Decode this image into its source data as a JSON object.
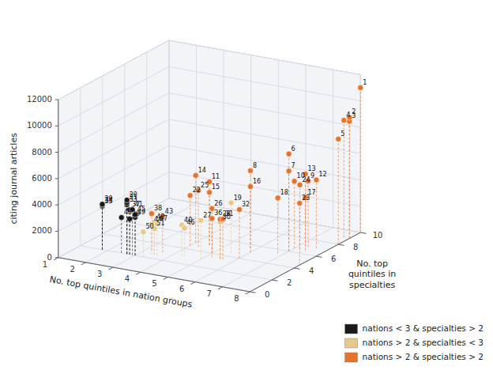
{
  "chart_data": {
    "type": "scatter3d",
    "xlabel": "No. top quintiles in nation groups",
    "ylabel": "citing journal articles",
    "zlabel": "No. top\nquintiles in\nspecialties",
    "xlim": [
      1,
      8
    ],
    "xticks": [
      1,
      2,
      3,
      4,
      5,
      6,
      7,
      8
    ],
    "ylim": [
      0,
      12000
    ],
    "yticks": [
      0,
      2000,
      4000,
      6000,
      8000,
      10000,
      12000
    ],
    "zlim": [
      0,
      10
    ],
    "zticks": [
      0,
      2,
      4,
      6,
      8,
      10
    ],
    "grid": true,
    "legend": "lower right",
    "series": [
      {
        "name": "nations < 3 & specialties > 2",
        "color": "#1A1A1A",
        "x": [
          2.7,
          2.7,
          1.8,
          2.7,
          1.8,
          1.8,
          2.8,
          2.8,
          2.9,
          3.0,
          2.5,
          3.0
        ],
        "y": [
          4100,
          3900,
          3450,
          3750,
          3350,
          3300,
          3400,
          2700,
          3450,
          3100,
          2700,
          2900
        ],
        "z": [
          2.0,
          2.0,
          2.0,
          2.0,
          2.0,
          2.0,
          2.0,
          2.0,
          2.0,
          2.0,
          2.0,
          2.0
        ],
        "labels": [
          20,
          21,
          29,
          33,
          34,
          35,
          37,
          39,
          41,
          45,
          48,
          49
        ]
      },
      {
        "name": "nations > 2 & specialties < 3",
        "color": "#E8C88A",
        "x": [
          5.5,
          5.0,
          5.5,
          4.3,
          3.5,
          3.4,
          4.4,
          3.6,
          3.3,
          3.5
        ],
        "y": [
          3800,
          2950,
          2800,
          2350,
          2500,
          2300,
          2150,
          2400,
          1900,
          2000
        ],
        "z": [
          4.5,
          3.0,
          3.5,
          3.0,
          2.5,
          2.5,
          3.0,
          2.5,
          2.0,
          2.5
        ],
        "labels": [
          19,
          27,
          30,
          40,
          42,
          44,
          46,
          47,
          50,
          51
        ]
      },
      {
        "name": "nations > 2 & specialties > 2",
        "color": "#E8722A",
        "x": [
          8.0,
          8.0,
          8.0,
          7.8,
          8.0,
          7.0,
          7.0,
          6.0,
          7.3,
          7.0,
          4.5,
          7.6,
          7.2,
          4.0,
          4.5,
          5.8,
          7.4,
          6.8,
          4.0,
          8.0,
          7.2,
          4.3,
          5.0,
          5.5,
          5.6,
          6.0,
          5.2,
          3.2,
          3.6
        ],
        "y": [
          11000,
          9200,
          8900,
          8900,
          8000,
          7400,
          6100,
          6200,
          5000,
          5100,
          4800,
          5200,
          5500,
          5100,
          4000,
          4700,
          4000,
          4200,
          3800,
          4700,
          4900,
          4300,
          3400,
          3000,
          3050,
          3700,
          2950,
          2800,
          2750
        ],
        "z": [
          10.0,
          9.0,
          9.0,
          9.0,
          8.0,
          6.0,
          6.0,
          5.0,
          7.0,
          6.5,
          5.0,
          7.0,
          7.0,
          5.0,
          5.0,
          5.5,
          6.5,
          5.5,
          4.5,
          4.5,
          6.5,
          4.5,
          4.0,
          3.5,
          3.5,
          4.0,
          3.5,
          3.0,
          3.0
        ],
        "labels": [
          1,
          2,
          3,
          4,
          5,
          6,
          7,
          8,
          9,
          10,
          11,
          12,
          13,
          14,
          15,
          16,
          17,
          18,
          22,
          23,
          24,
          25,
          26,
          28,
          31,
          32,
          36,
          38,
          43
        ]
      }
    ]
  }
}
